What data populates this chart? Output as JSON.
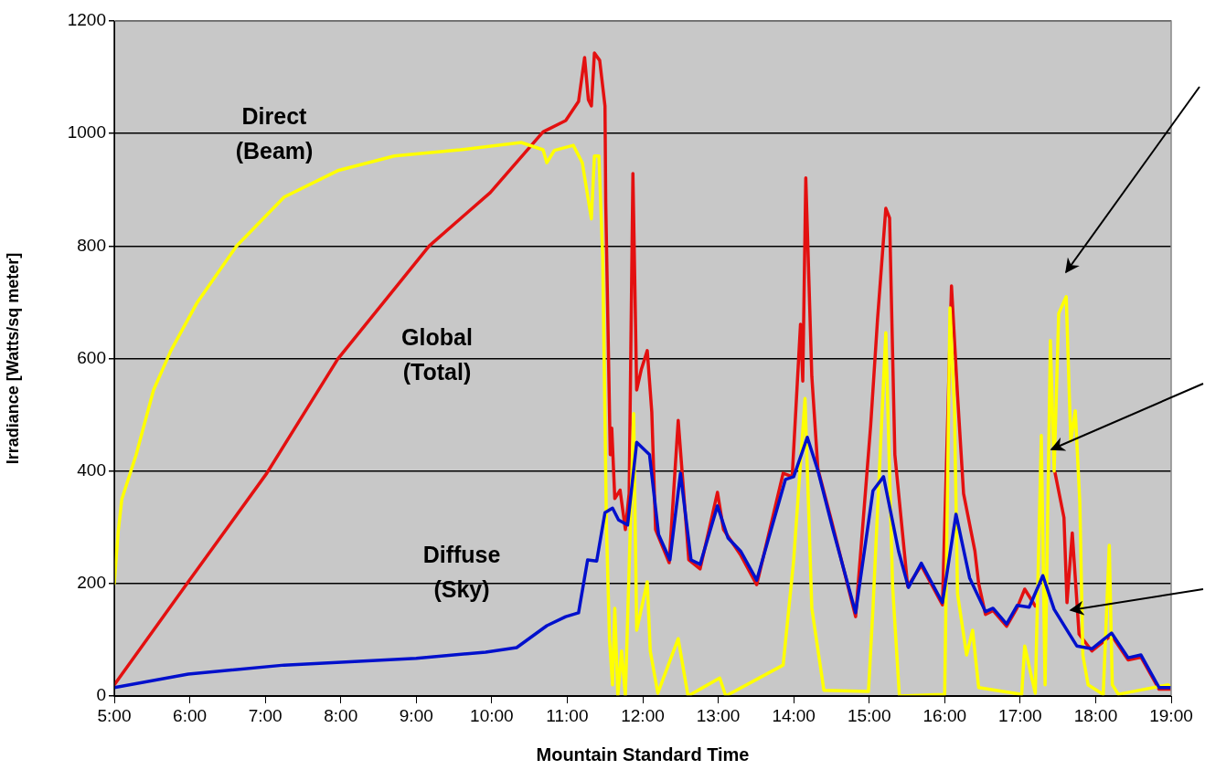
{
  "chart_data": {
    "type": "line",
    "xlabel": "Mountain Standard Time",
    "ylabel": "Irradiance [Watts/sq meter]",
    "xlim": [
      5,
      19
    ],
    "xticks": [
      {
        "value": 5,
        "label": "5:00"
      },
      {
        "value": 6,
        "label": "6:00"
      },
      {
        "value": 7,
        "label": "7:00"
      },
      {
        "value": 8,
        "label": "8:00"
      },
      {
        "value": 9,
        "label": "9:00"
      },
      {
        "value": 10,
        "label": "10:00"
      },
      {
        "value": 11,
        "label": "11:00"
      },
      {
        "value": 12,
        "label": "12:00"
      },
      {
        "value": 13,
        "label": "13:00"
      },
      {
        "value": 14,
        "label": "14:00"
      },
      {
        "value": 15,
        "label": "15:00"
      },
      {
        "value": 16,
        "label": "16:00"
      },
      {
        "value": 17,
        "label": "17:00"
      },
      {
        "value": 18,
        "label": "18:00"
      },
      {
        "value": 19,
        "label": "19:00"
      }
    ],
    "ylim": [
      0,
      1200
    ],
    "yticks": [
      0,
      200,
      400,
      600,
      800,
      1000,
      1200
    ],
    "grid": "y",
    "legend": false,
    "marker": "none",
    "line_style": "solid",
    "series": [
      {
        "name": "Global (Total)",
        "color": "#e31010",
        "x": [
          5,
          5.98,
          7.02,
          7.96,
          9.17,
          9.98,
          10.68,
          10.98,
          11.15,
          11.23,
          11.28,
          11.32,
          11.36,
          11.43,
          11.5,
          11.51,
          11.57,
          11.59,
          11.63,
          11.7,
          11.77,
          11.82,
          11.87,
          11.92,
          11.98,
          12.06,
          12.12,
          12.17,
          12.35,
          12.47,
          12.61,
          12.76,
          12.99,
          13.07,
          13.3,
          13.51,
          13.86,
          13.98,
          14.09,
          14.12,
          14.16,
          14.24,
          14.32,
          14.5,
          14.82,
          15.02,
          15.11,
          15.22,
          15.27,
          15.34,
          15.51,
          15.69,
          15.97,
          16.09,
          16.17,
          16.25,
          16.4,
          16.45,
          16.54,
          16.64,
          16.82,
          16.96,
          17.06,
          17.2,
          17.3,
          17.46,
          17.58,
          17.62,
          17.69,
          17.78,
          17.95,
          18.21,
          18.43,
          18.6,
          18.84,
          19
        ],
        "values": [
          20,
          203,
          396,
          599,
          800,
          895,
          1003,
          1023,
          1057,
          1135,
          1060,
          1049,
          1143,
          1130,
          1049,
          878,
          429,
          476,
          351,
          366,
          296,
          360,
          929,
          544,
          580,
          614,
          505,
          296,
          237,
          490,
          242,
          226,
          362,
          296,
          250,
          198,
          396,
          390,
          661,
          560,
          921,
          568,
          404,
          312,
          141,
          482,
          669,
          867,
          850,
          429,
          195,
          232,
          162,
          729,
          535,
          360,
          258,
          200,
          145,
          152,
          124,
          157,
          190,
          160,
          null,
          398,
          317,
          166,
          290,
          110,
          80,
          108,
          64,
          69,
          12,
          12
        ]
      },
      {
        "name": "Direct (Beam)",
        "color": "#ffff00",
        "x": [
          5,
          5.05,
          5.1,
          5.29,
          5.52,
          5.75,
          6.1,
          6.62,
          7.25,
          7.96,
          8.71,
          9.58,
          10.39,
          10.68,
          10.73,
          10.83,
          11.08,
          11.2,
          11.32,
          11.36,
          11.42,
          11.47,
          11.52,
          11.56,
          11.6,
          11.63,
          11.67,
          11.72,
          11.77,
          11.88,
          11.92,
          12.06,
          12.1,
          12.2,
          12.47,
          12.6,
          13.02,
          13.1,
          13.86,
          14,
          14.15,
          14.24,
          14.4,
          14.99,
          15.05,
          15.22,
          15.31,
          15.4,
          16,
          16.07,
          16.13,
          16.17,
          16.29,
          16.37,
          16.45,
          17.02,
          17.06,
          17.14,
          17.2,
          17.28,
          17.33,
          17.4,
          17.45,
          17.51,
          17.61,
          17.67,
          17.73,
          17.79,
          17.83,
          17.9,
          18.1,
          18.18,
          18.22,
          18.3,
          18.96,
          19
        ],
        "values": [
          200,
          290,
          350,
          429,
          544,
          614,
          700,
          800,
          887,
          934,
          960,
          971,
          984,
          971,
          948,
          970,
          979,
          948,
          848,
          960,
          960,
          780,
          300,
          100,
          20,
          156,
          0,
          80,
          0,
          502,
          117,
          203,
          80,
          5,
          102,
          0,
          32,
          0,
          55,
          242,
          529,
          156,
          10,
          8,
          156,
          646,
          195,
          0,
          3,
          690,
          507,
          182,
          73,
          117,
          15,
          3,
          89,
          40,
          5,
          463,
          20,
          632,
          400,
          680,
          710,
          453,
          507,
          344,
          73,
          20,
          3,
          268,
          20,
          3,
          20,
          15
        ]
      },
      {
        "name": "Diffuse (Sky)",
        "color": "#0010cc",
        "x": [
          5,
          5.98,
          7.25,
          9,
          9.92,
          10.33,
          10.73,
          10.98,
          11.15,
          11.27,
          11.39,
          11.5,
          11.6,
          11.68,
          11.8,
          11.92,
          12.09,
          12.21,
          12.36,
          12.5,
          12.64,
          12.76,
          12.99,
          13.13,
          13.3,
          13.51,
          13.89,
          14,
          14.18,
          14.32,
          14.52,
          14.82,
          15.05,
          15.19,
          15.39,
          15.52,
          15.69,
          15.97,
          16.15,
          16.33,
          16.54,
          16.64,
          16.82,
          16.96,
          17.12,
          17.3,
          17.45,
          17.62,
          17.75,
          17.95,
          18.21,
          18.43,
          18.6,
          18.84,
          19
        ],
        "values": [
          15,
          39,
          55,
          67,
          78,
          86,
          125,
          141,
          148,
          242,
          240,
          326,
          334,
          313,
          304,
          451,
          429,
          287,
          242,
          396,
          242,
          234,
          338,
          281,
          257,
          206,
          385,
          390,
          460,
          401,
          296,
          148,
          365,
          390,
          257,
          193,
          236,
          166,
          323,
          210,
          150,
          156,
          128,
          161,
          158,
          214,
          154,
          117,
          89,
          84,
          112,
          68,
          73,
          15,
          15
        ]
      }
    ]
  }
}
